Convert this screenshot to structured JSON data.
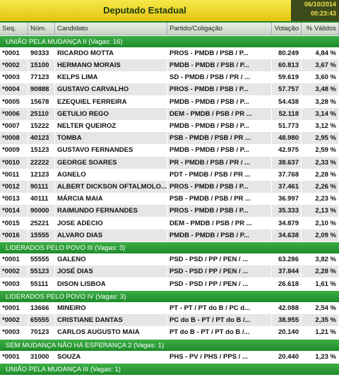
{
  "header": {
    "title": "Deputado Estadual",
    "date": "06/10/2014",
    "time": "00:23:43"
  },
  "columns": [
    "Seq.",
    "Núm.",
    "Candidato",
    "Partido/Coligação",
    "Votação",
    "% Válidos"
  ],
  "groups": [
    {
      "name": "UNIÃO PELA MUDANÇA II  (Vagas: 16)",
      "rows": [
        [
          "*0001",
          "90333",
          "RICARDO MOTTA",
          "PROS - PMDB / PSB / P...",
          "80.249",
          "4,84 %"
        ],
        [
          "*0002",
          "15100",
          "HERMANO MORAIS",
          "PMDB - PMDB / PSB / P...",
          "60.813",
          "3,67 %"
        ],
        [
          "*0003",
          "77123",
          "KELPS LIMA",
          "SD - PMDB / PSB / PR / ...",
          "59.619",
          "3,60 %"
        ],
        [
          "*0004",
          "90888",
          "GUSTAVO CARVALHO",
          "PROS - PMDB / PSB / P...",
          "57.757",
          "3,48 %"
        ],
        [
          "*0005",
          "15678",
          "EZEQUIEL FERREIRA",
          "PMDB - PMDB / PSB / P...",
          "54.438",
          "3,28 %"
        ],
        [
          "*0006",
          "25110",
          "GETULIO REGO",
          "DEM - PMDB / PSB / PR ...",
          "52.118",
          "3,14 %"
        ],
        [
          "*0007",
          "15222",
          "NELTER QUEIROZ",
          "PMDB - PMDB / PSB / P...",
          "51.773",
          "3,12 %"
        ],
        [
          "*0008",
          "40123",
          "TOMBA",
          "PSB - PMDB / PSB / PR ...",
          "48.980",
          "2,95 %"
        ],
        [
          "*0009",
          "15123",
          "GUSTAVO FERNANDES",
          "PMDB - PMDB / PSB / P...",
          "42.975",
          "2,59 %"
        ],
        [
          "*0010",
          "22222",
          "GEORGE SOARES",
          "PR - PMDB / PSB / PR / ...",
          "38.637",
          "2,33 %"
        ],
        [
          "*0011",
          "12123",
          "AGNELO",
          "PDT - PMDB / PSB / PR ...",
          "37.768",
          "2,28 %"
        ],
        [
          "*0012",
          "90111",
          "ALBERT DICKSON OFTALMOLO...",
          "PROS - PMDB / PSB / P...",
          "37.461",
          "2,26 %"
        ],
        [
          "*0013",
          "40111",
          "MÁRCIA MAIA",
          "PSB - PMDB / PSB / PR ...",
          "36.997",
          "2,23 %"
        ],
        [
          "*0014",
          "90000",
          "RAIMUNDO FERNANDES",
          "PROS - PMDB / PSB / P...",
          "35.333",
          "2,13 %"
        ],
        [
          "*0015",
          "25221",
          "JOSE ADECIO",
          "DEM - PMDB / PSB / PR ...",
          "34.879",
          "2,10 %"
        ],
        [
          "*0016",
          "15555",
          "ALVARO DIAS",
          "PMDB - PMDB / PSB / P...",
          "34.638",
          "2,09 %"
        ]
      ]
    },
    {
      "name": "LIDERADOS PELO POVO III  (Vagas: 3)",
      "rows": [
        [
          "*0001",
          "55555",
          "GALENO",
          "PSD - PSD / PP / PEN / ...",
          "63.286",
          "3,82 %"
        ],
        [
          "*0002",
          "55123",
          "JOSÉ DIAS",
          "PSD - PSD / PP / PEN / ...",
          "37.844",
          "2,28 %"
        ],
        [
          "*0003",
          "55111",
          "DISON LISBOA",
          "PSD - PSD / PP / PEN / ...",
          "26.618",
          "1,61 %"
        ]
      ]
    },
    {
      "name": "LIDERADOS PELO POVO IV  (Vagas: 3)",
      "rows": [
        [
          "*0001",
          "13666",
          "MINEIRO",
          "PT - PT / PT do B / PC d...",
          "42.088",
          "2,54 %"
        ],
        [
          "*0002",
          "65555",
          "CRISTIANE DANTAS",
          "PC do B - PT / PT do B /...",
          "38.955",
          "2,35 %"
        ],
        [
          "*0003",
          "70123",
          "CARLOS AUGUSTO MAIA",
          "PT do B - PT / PT do B /...",
          "20.140",
          "1,21 %"
        ]
      ]
    },
    {
      "name": "SEM MUDANÇA NÃO HÁ ESPERANÇA 2  (Vagas: 1)",
      "rows": [
        [
          "*0001",
          "31000",
          "SOUZA",
          "PHS - PV / PHS / PPS / ...",
          "20.440",
          "1,23 %"
        ]
      ]
    },
    {
      "name": "UNIÃO PELA MUDANÇA III  (Vagas: 1)",
      "rows": []
    }
  ]
}
